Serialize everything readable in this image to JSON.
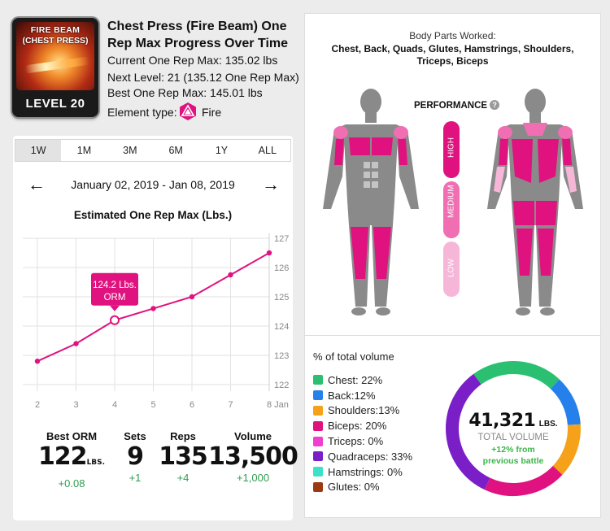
{
  "header": {
    "badge_line1": "FIRE BEAM",
    "badge_line2": "(CHEST PRESS)",
    "badge_level": "LEVEL 20",
    "title": "Chest Press (Fire Beam) One Rep Max  Progress Over Time",
    "current_orm": "Current One Rep Max: 135.02 lbs",
    "next_level": "Next Level: 21 (135.12 One Rep Max)",
    "best_orm": "Best One Rep Max: 145.01 lbs",
    "element_type_label": "Element type:",
    "element_type_value": "Fire",
    "element_icon": "fire-element-icon"
  },
  "tabs": [
    "1W",
    "1M",
    "3M",
    "6M",
    "1Y",
    "ALL"
  ],
  "active_tab": "1W",
  "date_range": "January 02, 2019 - Jan 08, 2019",
  "prev_icon": "arrow-left-icon",
  "next_icon": "arrow-right-icon",
  "chart_data": {
    "type": "line",
    "title": "Estimated One Rep Max (Lbs.)",
    "x": [
      2,
      3,
      4,
      5,
      6,
      7,
      8
    ],
    "x_tick_labels": [
      "2",
      "3",
      "4",
      "5",
      "6",
      "7",
      "8 Jan"
    ],
    "y": [
      122.8,
      123.4,
      124.2,
      124.6,
      125.0,
      125.75,
      126.5
    ],
    "y_ticks": [
      122,
      123,
      124,
      125,
      126,
      127
    ],
    "ylim": [
      122,
      127
    ],
    "grid": true,
    "y_axis_side": "right",
    "color": "#e0127f",
    "tooltip": {
      "line1": "124.2 Lbs.",
      "line2": "ORM",
      "x": 4
    }
  },
  "stats": [
    {
      "label": "Best ORM",
      "value": "122",
      "unit": "LBS.",
      "delta": "+0.08"
    },
    {
      "label": "Sets",
      "value": "9",
      "unit": "",
      "delta": "+1"
    },
    {
      "label": "Reps",
      "value": "135",
      "unit": "",
      "delta": "+4"
    },
    {
      "label": "Volume",
      "value": "13,500",
      "unit": "",
      "delta": "+1,000"
    }
  ],
  "body_parts": {
    "label": "Body Parts Worked:",
    "list": "Chest, Back, Quads, Glutes, Hamstrings, Shoulders, Triceps, Biceps"
  },
  "performance": {
    "label": "PERFORMANCE",
    "help": "?",
    "levels": [
      {
        "name": "HIGH",
        "color": "#e0127f"
      },
      {
        "name": "MEDIUM",
        "color": "#ef6fb2"
      },
      {
        "name": "LOW",
        "color": "#f6b6d8"
      }
    ]
  },
  "volume": {
    "title": "% of total volume",
    "items": [
      {
        "label": "Chest: 22%",
        "pct": 22,
        "color": "#2bc071"
      },
      {
        "label": "Back:12%",
        "pct": 12,
        "color": "#2680eb"
      },
      {
        "label": "Shoulders:13%",
        "pct": 13,
        "color": "#f5a21a"
      },
      {
        "label": "Biceps: 20%",
        "pct": 20,
        "color": "#e0127f"
      },
      {
        "label": "Triceps: 0%",
        "pct": 0,
        "color": "#f03ecf"
      },
      {
        "label": "Quadraceps: 33%",
        "pct": 33,
        "color": "#7a1fc7"
      },
      {
        "label": "Hamstrings: 0%",
        "pct": 0,
        "color": "#3fe0c8"
      },
      {
        "label": "Glutes: 0%",
        "pct": 0,
        "color": "#9b3a12"
      }
    ],
    "total": "41,321",
    "total_unit": "LBS.",
    "total_label": "TOTAL VOLUME",
    "change_line1": "+12% from",
    "change_line2": "previous battle"
  }
}
